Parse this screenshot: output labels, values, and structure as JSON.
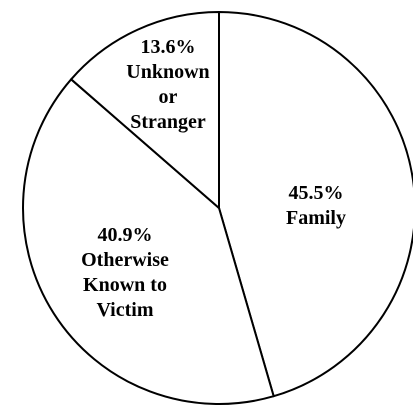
{
  "chart_data": {
    "type": "pie",
    "title": "",
    "slices": [
      {
        "label": "Family",
        "value": 45.5,
        "value_text": "45.5%",
        "label_lines": [
          "45.5%",
          "Family"
        ]
      },
      {
        "label": "Otherwise Known to Victim",
        "value": 40.9,
        "value_text": "40.9%",
        "label_lines": [
          "40.9%",
          "Otherwise",
          "Known to",
          "Victim"
        ]
      },
      {
        "label": "Unknown or Stranger",
        "value": 13.6,
        "value_text": "13.6%",
        "label_lines": [
          "13.6%",
          "Unknown",
          "or",
          "Stranger"
        ]
      }
    ],
    "start_angle_deg": 0,
    "direction": "clockwise",
    "slice_color": "#ffffff",
    "stroke_color": "#000000",
    "legend": "none"
  }
}
